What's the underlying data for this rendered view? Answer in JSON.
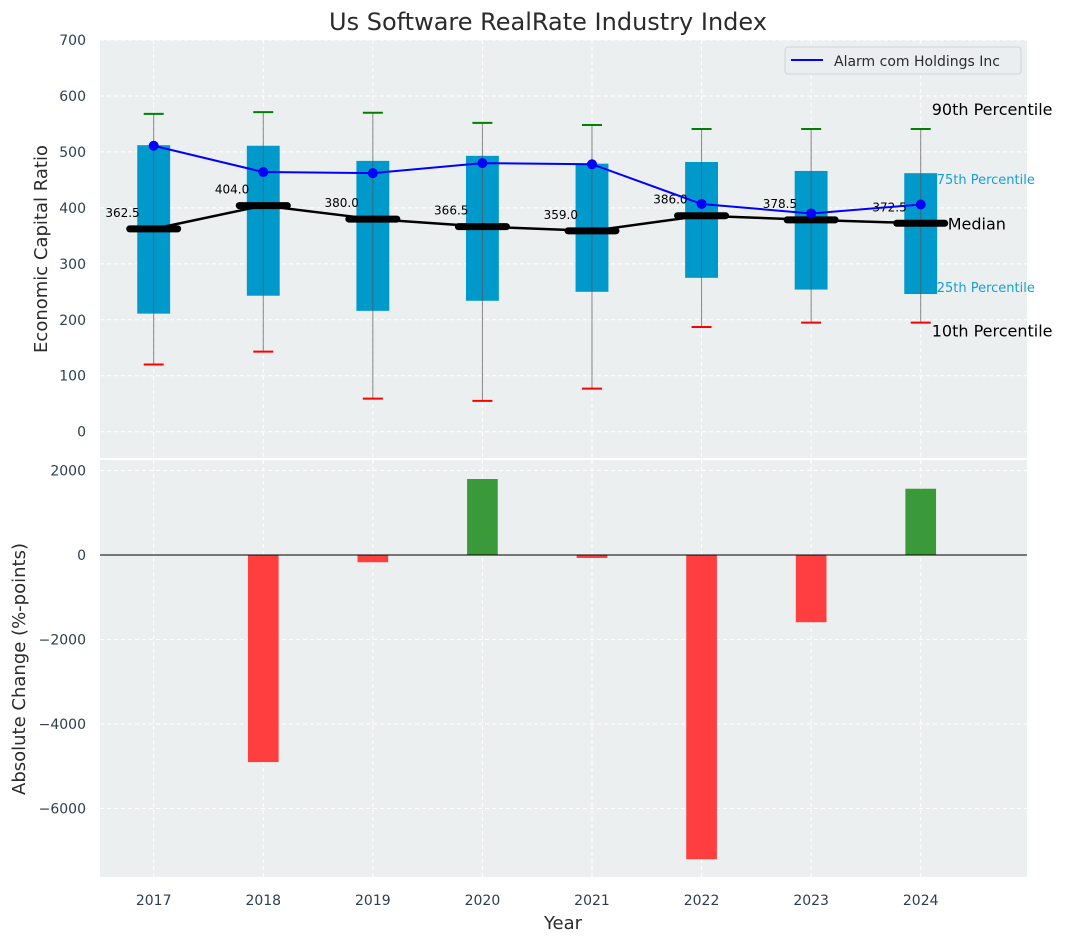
{
  "chart_data": [
    {
      "type": "box",
      "title": "Us Software RealRate Industry Index",
      "xlabel": "",
      "ylabel": "Economic Capital Ratio",
      "ylim": [
        -47,
        700
      ],
      "yticks": [
        0,
        100,
        200,
        300,
        400,
        500,
        600,
        700
      ],
      "grid": true,
      "categories": [
        "2017",
        "2018",
        "2019",
        "2020",
        "2021",
        "2022",
        "2023",
        "2024"
      ],
      "p10": [
        120,
        143,
        59,
        55,
        77,
        187,
        195,
        195
      ],
      "p25": [
        211,
        243,
        216,
        234,
        250,
        275,
        254,
        246
      ],
      "median": [
        362.5,
        404.0,
        380.0,
        366.5,
        359.0,
        386.0,
        378.5,
        372.5
      ],
      "median_labels": [
        "362.5",
        "404.0",
        "380.0",
        "366.5",
        "359.0",
        "386.0",
        "378.5",
        "372.5"
      ],
      "p75": [
        512,
        511,
        484,
        493,
        479,
        482,
        466,
        462
      ],
      "p90": [
        568,
        571,
        570,
        552,
        548,
        541,
        541,
        541
      ],
      "series": [
        {
          "name": "Alarm com Holdings Inc",
          "values": [
            511,
            464,
            462,
            480,
            478,
            407,
            390,
            406
          ],
          "color": "#0000ff"
        }
      ],
      "legend": {
        "placement": "top-right",
        "entries": [
          "Alarm com Holdings Inc"
        ]
      },
      "annotations": {
        "p90": "90th Percentile",
        "p75": "75th Percentile",
        "median": "Median",
        "p25": "25th Percentile",
        "p10": "10th Percentile"
      },
      "colors": {
        "box": "#0099cc",
        "p90": "#008000",
        "p10": "#ff0000",
        "median": "#000000",
        "background": "#ebeff0"
      }
    },
    {
      "type": "bar",
      "xlabel": "Year",
      "ylabel": "Absolute Change (%-points)",
      "ylim": [
        -7620,
        2250
      ],
      "yticks": [
        -6000,
        -4000,
        -2000,
        0,
        2000
      ],
      "ytick_labels": [
        "−6000",
        "−4000",
        "−2000",
        "0",
        "2000"
      ],
      "grid": true,
      "categories": [
        "2017",
        "2018",
        "2019",
        "2020",
        "2021",
        "2022",
        "2023",
        "2024"
      ],
      "values": [
        0,
        -4900,
        -170,
        1800,
        -70,
        -7200,
        -1590,
        1570
      ],
      "colors": {
        "positive": "#3a9a3a",
        "negative": "#ff3f3f"
      }
    }
  ]
}
